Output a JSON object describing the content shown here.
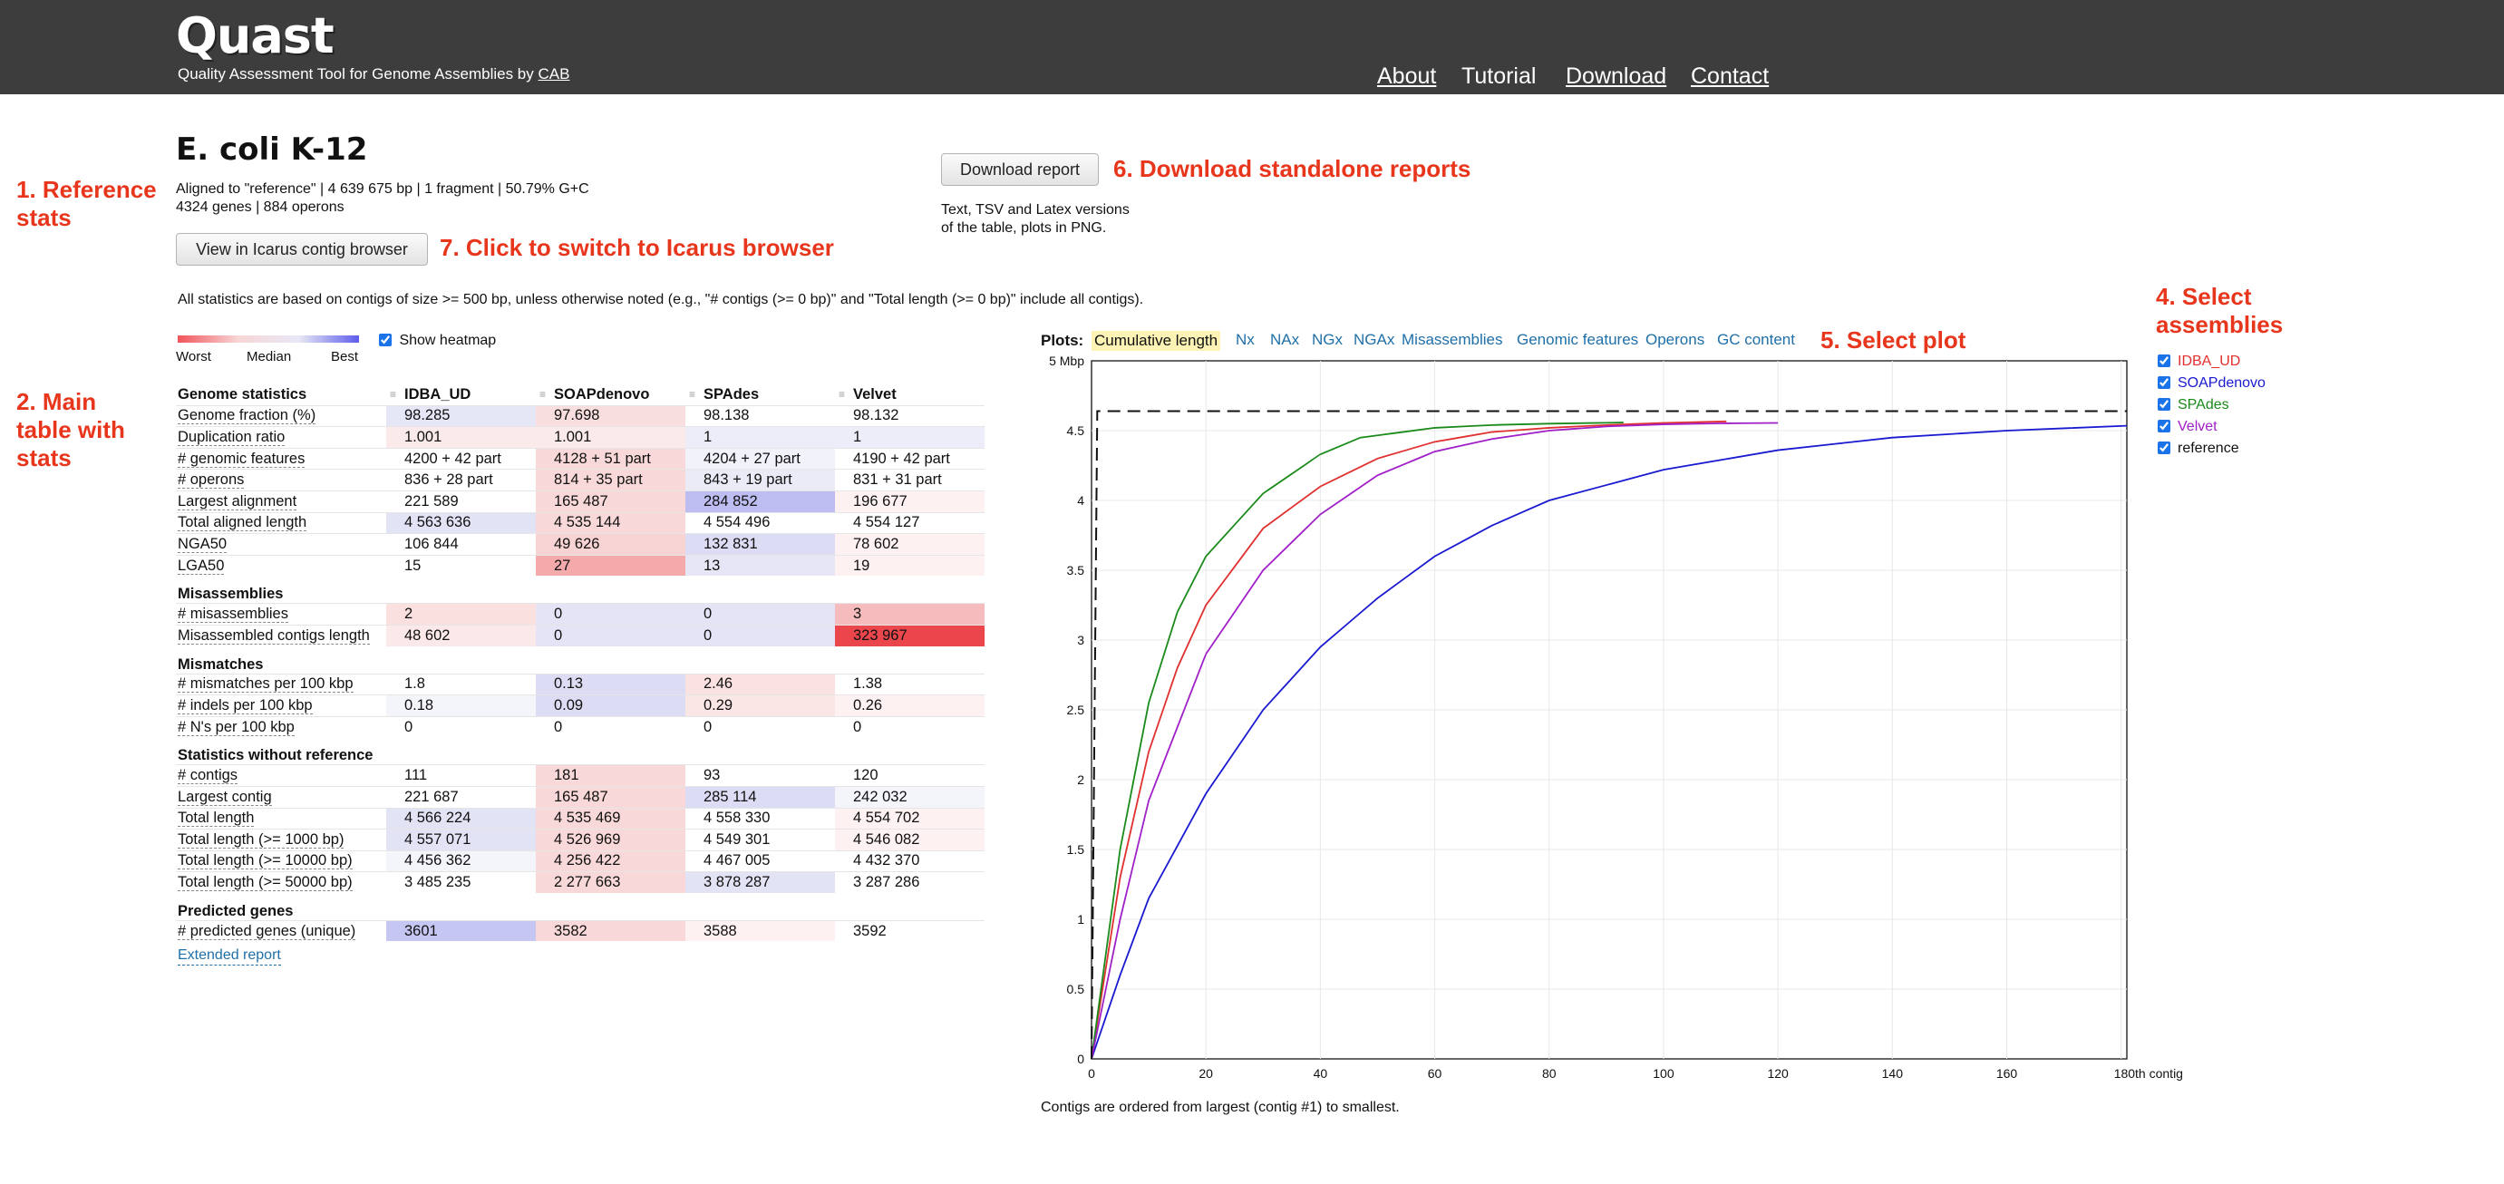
{
  "header": {
    "logo": "Quast",
    "tagline": "Quality Assessment Tool for Genome Assemblies by",
    "tagline_link": "CAB",
    "nav": [
      {
        "label": "About",
        "underline": true
      },
      {
        "label": "Tutorial",
        "underline": false
      },
      {
        "label": "Download",
        "underline": true
      },
      {
        "label": "Contact",
        "underline": true
      }
    ]
  },
  "annotations": {
    "a1": "1. Reference\nstats",
    "a2": "2. Main\ntable with\nstats",
    "a4": "4. Select\nassemblies",
    "a5": "5. Select plot",
    "a6": "6. Download standalone reports",
    "a7": "7. Click to switch to Icarus browser"
  },
  "reference": {
    "title": "E. coli K-12",
    "line1": "Aligned to \"reference\" | 4 639 675 bp | 1 fragment | 50.79% G+C",
    "line2": "4324 genes | 884 operons"
  },
  "buttons": {
    "icarus": "View in Icarus contig browser",
    "download": "Download report"
  },
  "download_desc": "Text, TSV and Latex versions\nof the table, plots in PNG.",
  "note": "All statistics are based on contigs of size >= 500 bp, unless otherwise noted (e.g., \"# contigs (>= 0 bp)\" and \"Total length (>= 0 bp)\" include all contigs).",
  "heatmap": {
    "worst": "Worst",
    "median": "Median",
    "best": "Best",
    "toggle_label": "Show heatmap",
    "checked": true
  },
  "table": {
    "header_label": "Genome statistics",
    "columns": [
      "IDBA_UD",
      "SOAPdenovo",
      "SPAdes",
      "Velvet"
    ],
    "sections": [
      {
        "title": "Genome statistics",
        "rows": [
          {
            "label": "Genome fraction (%)",
            "link": true,
            "values": [
              "98.285",
              "97.698",
              "98.138",
              "98.132"
            ],
            "colors": [
              "#e5e6f6",
              "#f8dede",
              "#ffffff",
              "#ffffff"
            ]
          },
          {
            "label": "Duplication ratio",
            "link": true,
            "values": [
              "1.001",
              "1.001",
              "1",
              "1"
            ],
            "colors": [
              "#fbeaea",
              "#fbeaea",
              "#ecedf8",
              "#ecedf8"
            ]
          },
          {
            "label": "# genomic features",
            "link": true,
            "values": [
              "4200 + 42 part",
              "4128 + 51 part",
              "4204 + 27 part",
              "4190 + 42 part"
            ],
            "colors": [
              "#ffffff",
              "#f8d8d8",
              "#f2f2fb",
              "#ffffff"
            ]
          },
          {
            "label": "# operons",
            "link": true,
            "values": [
              "836 + 28 part",
              "814 + 35 part",
              "843 + 19 part",
              "831 + 31 part"
            ],
            "colors": [
              "#ffffff",
              "#f8d8d8",
              "#ebebf8",
              "#ffffff"
            ]
          },
          {
            "label": "Largest alignment",
            "link": true,
            "values": [
              "221 589",
              "165 487",
              "284 852",
              "196 677"
            ],
            "colors": [
              "#ffffff",
              "#f8d8d8",
              "#bdbdf1",
              "#fdf1f1"
            ]
          },
          {
            "label": "Total aligned length",
            "link": true,
            "values": [
              "4 563 636",
              "4 535 144",
              "4 554 496",
              "4 554 127"
            ],
            "colors": [
              "#e3e3f6",
              "#f8d8d8",
              "#ffffff",
              "#ffffff"
            ]
          },
          {
            "label": "NGA50",
            "link": true,
            "values": [
              "106 844",
              "49 626",
              "132 831",
              "78 602"
            ],
            "colors": [
              "#ffffff",
              "#f7d3d3",
              "#dcdcf4",
              "#fdf1f1"
            ]
          },
          {
            "label": "LGA50",
            "link": true,
            "values": [
              "15",
              "27",
              "13",
              "19"
            ],
            "colors": [
              "#ffffff",
              "#f4a9ab",
              "#e6e6f7",
              "#fdf1f1"
            ]
          }
        ]
      },
      {
        "title": "Misassemblies",
        "rows": [
          {
            "label": "# misassemblies",
            "link": true,
            "values": [
              "2",
              "0",
              "0",
              "3"
            ],
            "colors": [
              "#fbe0e0",
              "#e4e4f6",
              "#e4e4f6",
              "#f6bcbd"
            ]
          },
          {
            "label": "Misassembled contigs length",
            "link": true,
            "values": [
              "48 602",
              "0",
              "0",
              "323 967"
            ],
            "colors": [
              "#fbe8e8",
              "#e4e4f6",
              "#e4e4f6",
              "#ec464d"
            ]
          }
        ]
      },
      {
        "title": "Mismatches",
        "rows": [
          {
            "label": "# mismatches per 100 kbp",
            "link": true,
            "values": [
              "1.8",
              "0.13",
              "2.46",
              "1.38"
            ],
            "colors": [
              "#ffffff",
              "#dcdcf4",
              "#fbe2e2",
              "#ffffff"
            ]
          },
          {
            "label": "# indels per 100 kbp",
            "link": true,
            "values": [
              "0.18",
              "0.09",
              "0.29",
              "0.26"
            ],
            "colors": [
              "#f4f4fb",
              "#dcdcf4",
              "#fbe6e6",
              "#fdf1f1"
            ]
          },
          {
            "label": "# N's per 100 kbp",
            "link": true,
            "values": [
              "0",
              "0",
              "0",
              "0"
            ],
            "colors": [
              "#ffffff",
              "#ffffff",
              "#ffffff",
              "#ffffff"
            ]
          }
        ]
      },
      {
        "title": "Statistics without reference",
        "rows": [
          {
            "label": "# contigs",
            "link": true,
            "values": [
              "111",
              "181",
              "93",
              "120"
            ],
            "colors": [
              "#ffffff",
              "#f8d8d8",
              "#ffffff",
              "#ffffff"
            ]
          },
          {
            "label": "Largest contig",
            "link": true,
            "values": [
              "221 687",
              "165 487",
              "285 114",
              "242 032"
            ],
            "colors": [
              "#ffffff",
              "#f8d8d8",
              "#dcdcf4",
              "#f4f4fb"
            ]
          },
          {
            "label": "Total length",
            "link": true,
            "values": [
              "4 566 224",
              "4 535 469",
              "4 558 330",
              "4 554 702"
            ],
            "colors": [
              "#e3e3f6",
              "#f8d8d8",
              "#ffffff",
              "#fdf1f1"
            ]
          },
          {
            "label": "Total length (>= 1000 bp)",
            "link": true,
            "values": [
              "4 557 071",
              "4 526 969",
              "4 549 301",
              "4 546 082"
            ],
            "colors": [
              "#e3e3f6",
              "#f8d8d8",
              "#ffffff",
              "#fdf1f1"
            ]
          },
          {
            "label": "Total length (>= 10000 bp)",
            "link": true,
            "values": [
              "4 456 362",
              "4 256 422",
              "4 467 005",
              "4 432 370"
            ],
            "colors": [
              "#f4f4fb",
              "#f8d8d8",
              "#ffffff",
              "#ffffff"
            ]
          },
          {
            "label": "Total length (>= 50000 bp)",
            "link": true,
            "values": [
              "3 485 235",
              "2 277 663",
              "3 878 287",
              "3 287 286"
            ],
            "colors": [
              "#ffffff",
              "#f8d8d8",
              "#e3e3f6",
              "#ffffff"
            ]
          }
        ]
      },
      {
        "title": "Predicted genes",
        "rows": [
          {
            "label": "# predicted genes (unique)",
            "link": true,
            "values": [
              "3601",
              "3582",
              "3588",
              "3592"
            ],
            "colors": [
              "#c6c6f2",
              "#f8d8d8",
              "#fdf1f1",
              "#ffffff"
            ]
          }
        ]
      }
    ]
  },
  "extended_report": "Extended report",
  "plots": {
    "label": "Plots:",
    "tabs": [
      "Cumulative length",
      "Nx",
      "NAx",
      "NGx",
      "NGAx",
      "Misassemblies",
      "Genomic features",
      "Operons",
      "GC content"
    ],
    "active": "Cumulative length",
    "caption": "Contigs are ordered from largest (contig #1) to smallest."
  },
  "legend": [
    {
      "name": "IDBA_UD",
      "color": "#e03030",
      "checked": true
    },
    {
      "name": "SOAPdenovo",
      "color": "#1a1ad0",
      "checked": true
    },
    {
      "name": "SPAdes",
      "color": "#1a8a1a",
      "checked": true
    },
    {
      "name": "Velvet",
      "color": "#a020c8",
      "checked": true
    },
    {
      "name": "reference",
      "color": "#111111",
      "checked": true
    }
  ],
  "chart_data": {
    "type": "line",
    "title": "Cumulative length",
    "xlabel": "",
    "ylabel": "",
    "xlim": [
      0,
      181
    ],
    "ylim": [
      0,
      5
    ],
    "x_ticks": [
      "0",
      "20",
      "40",
      "60",
      "80",
      "100",
      "120",
      "140",
      "160",
      "180th contig"
    ],
    "y_ticks": [
      "0",
      "0.5",
      "1",
      "1.5",
      "2",
      "2.5",
      "3",
      "3.5",
      "4",
      "4.5",
      "5 Mbp"
    ],
    "grid": true,
    "series": [
      {
        "name": "IDBA_UD",
        "color": "#e03030",
        "x": [
          0,
          5,
          10,
          15,
          20,
          30,
          40,
          50,
          60,
          70,
          80,
          90,
          100,
          111
        ],
        "y": [
          0,
          1.3,
          2.2,
          2.8,
          3.25,
          3.8,
          4.1,
          4.3,
          4.42,
          4.49,
          4.52,
          4.54,
          4.555,
          4.566
        ]
      },
      {
        "name": "SOAPdenovo",
        "color": "#1a1ad0",
        "x": [
          0,
          5,
          10,
          20,
          30,
          40,
          50,
          60,
          70,
          80,
          100,
          120,
          140,
          160,
          181
        ],
        "y": [
          0,
          0.6,
          1.15,
          1.9,
          2.5,
          2.95,
          3.3,
          3.6,
          3.82,
          4.0,
          4.22,
          4.36,
          4.45,
          4.5,
          4.535
        ]
      },
      {
        "name": "SPAdes",
        "color": "#1a8a1a",
        "x": [
          0,
          5,
          10,
          15,
          20,
          30,
          40,
          47,
          60,
          70,
          80,
          93
        ],
        "y": [
          0,
          1.5,
          2.55,
          3.2,
          3.6,
          4.05,
          4.33,
          4.45,
          4.52,
          4.54,
          4.55,
          4.558
        ]
      },
      {
        "name": "Velvet",
        "color": "#a020c8",
        "x": [
          0,
          5,
          10,
          20,
          30,
          40,
          50,
          60,
          70,
          80,
          90,
          100,
          110,
          120
        ],
        "y": [
          0,
          1.0,
          1.85,
          2.9,
          3.5,
          3.9,
          4.18,
          4.35,
          4.44,
          4.5,
          4.53,
          4.545,
          4.552,
          4.555
        ]
      },
      {
        "name": "reference",
        "color": "#111111",
        "dashed": true,
        "x": [
          0,
          1,
          181
        ],
        "y": [
          0,
          4.64,
          4.64
        ]
      }
    ]
  }
}
